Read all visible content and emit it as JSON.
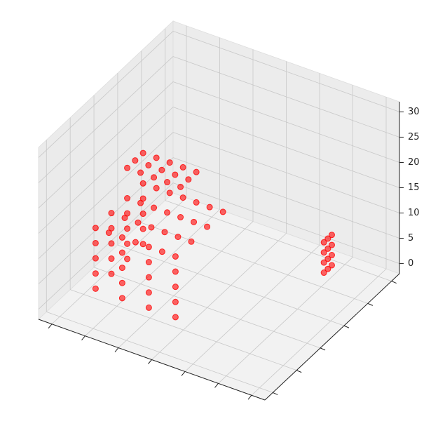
{
  "chart_data": {
    "type": "scatter3d",
    "color": "#ff0000",
    "x": [
      3,
      3,
      3,
      5,
      5,
      5,
      7,
      7,
      7,
      9,
      9,
      9,
      11,
      11,
      11,
      3,
      3,
      3,
      3,
      5,
      5,
      5,
      5,
      7,
      7,
      7,
      7,
      9,
      9,
      9,
      9,
      11,
      11,
      11,
      11,
      13,
      13,
      13,
      13,
      15,
      15,
      15,
      15,
      3,
      3,
      3,
      3,
      7,
      7,
      7,
      7,
      11,
      11,
      11,
      11,
      15,
      15,
      15,
      15,
      3,
      3,
      3,
      3,
      3,
      3,
      3,
      3,
      3,
      3,
      3,
      3,
      26,
      26,
      26,
      26,
      26,
      26,
      26,
      26,
      26,
      26,
      26,
      26
    ],
    "y": [
      12,
      14,
      16,
      12,
      14,
      16,
      12,
      14,
      16,
      12,
      14,
      16,
      12,
      14,
      16,
      4,
      8,
      12,
      16,
      4,
      8,
      12,
      16,
      4,
      8,
      12,
      16,
      4,
      8,
      12,
      16,
      4,
      8,
      12,
      16,
      4,
      8,
      12,
      16,
      4,
      8,
      12,
      16,
      4,
      4,
      4,
      4,
      4,
      4,
      4,
      4,
      4,
      4,
      4,
      4,
      4,
      4,
      4,
      4,
      8,
      8,
      8,
      8,
      12,
      12,
      12,
      12,
      16,
      16,
      16,
      16,
      23,
      23,
      23,
      23,
      24,
      24,
      24,
      24,
      25,
      25,
      25,
      25
    ],
    "z": [
      20,
      20,
      20,
      20,
      20,
      20,
      20,
      20,
      20,
      20,
      20,
      20,
      20,
      20,
      20,
      14,
      14,
      14,
      14,
      14,
      14,
      14,
      14,
      14,
      14,
      14,
      14,
      14,
      14,
      14,
      14,
      14,
      14,
      14,
      14,
      14,
      14,
      14,
      14,
      14,
      14,
      14,
      14,
      2,
      5,
      8,
      11,
      2,
      5,
      8,
      11,
      2,
      5,
      8,
      11,
      2,
      5,
      8,
      11,
      2,
      5,
      8,
      11,
      2,
      5,
      8,
      11,
      2,
      5,
      8,
      11,
      2,
      4,
      6,
      8,
      2,
      4,
      6,
      8,
      2,
      4,
      6,
      8
    ],
    "xlim": [
      -2,
      32
    ],
    "xticks": [
      0,
      5,
      10,
      15,
      20,
      25,
      30
    ],
    "ylim": [
      -2,
      32
    ],
    "yticks": [
      0,
      6,
      12,
      18,
      24,
      30
    ],
    "zlim": [
      -2,
      32
    ],
    "zticks": [
      0,
      5,
      10,
      15,
      20,
      25,
      30
    ],
    "grid": true
  }
}
